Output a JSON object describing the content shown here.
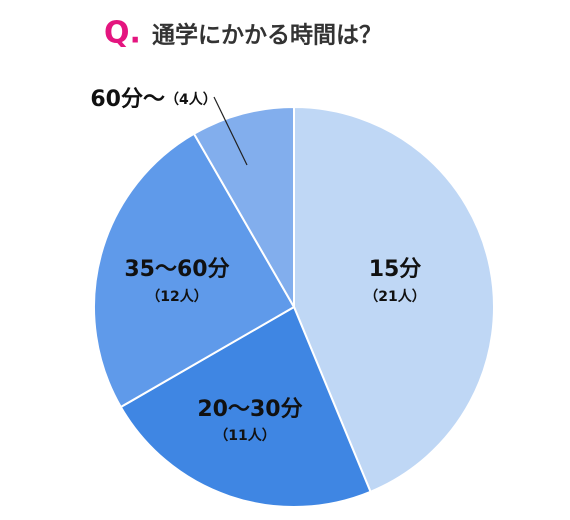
{
  "chart_data": {
    "type": "pie",
    "title_marker": "Q.",
    "title": "通学にかかる時間は？",
    "categories": [
      "15分",
      "20〜30分",
      "35〜60分",
      "60分〜"
    ],
    "values": [
      21,
      11,
      12,
      4
    ],
    "value_labels": [
      "（21人）",
      "（11人）",
      "（12人）",
      "（4人）"
    ],
    "colors": [
      "#bfd7f5",
      "#3f86e3",
      "#5f9aea",
      "#82aeed"
    ]
  }
}
